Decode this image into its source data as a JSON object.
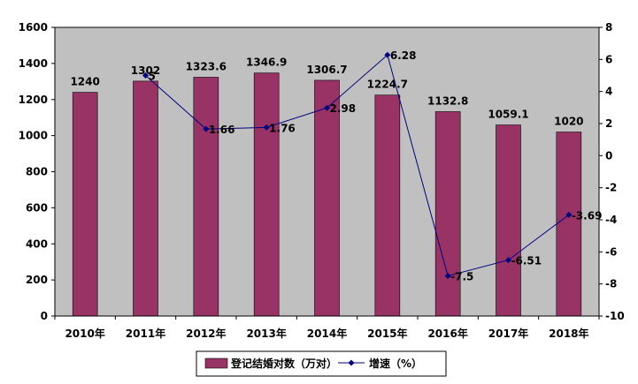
{
  "chart_data": {
    "type": "bar",
    "categories": [
      "2010年",
      "2011年",
      "2012年",
      "2013年",
      "2014年",
      "2015年",
      "2016年",
      "2017年",
      "2018年"
    ],
    "series": [
      {
        "name": "登记结婚对数（万对）",
        "type": "bar",
        "axis": "left",
        "values": [
          1240,
          1302,
          1323.6,
          1346.9,
          1306.7,
          1224.7,
          1132.8,
          1059.1,
          1020
        ],
        "labels": [
          "1240",
          "1302",
          "1323.6",
          "1346.9",
          "1306.7",
          "1224.7",
          "1132.8",
          "1059.1",
          "1020"
        ]
      },
      {
        "name": "增速（%）",
        "type": "line",
        "axis": "right",
        "values": [
          null,
          5,
          1.66,
          1.76,
          2.98,
          6.28,
          -7.5,
          -6.51,
          -3.69
        ],
        "labels": [
          "",
          "5",
          "1.66",
          "1.76",
          "2.98",
          "6.28",
          "-7.5",
          "-6.51",
          "-3.69"
        ]
      }
    ],
    "y_left": {
      "ylim": [
        0,
        1600
      ],
      "ticks": [
        "0",
        "200",
        "400",
        "600",
        "800",
        "1000",
        "1200",
        "1400",
        "1600"
      ]
    },
    "y_right": {
      "ylim": [
        -10,
        8
      ],
      "ticks": [
        "-10",
        "-8",
        "-6",
        "-4",
        "-2",
        "0",
        "2",
        "4",
        "6",
        "8"
      ]
    },
    "grid": false,
    "legend_position": "bottom",
    "colors": {
      "plot_background": "#c0c0c0",
      "bar": "#993366",
      "line": "#000080"
    }
  }
}
